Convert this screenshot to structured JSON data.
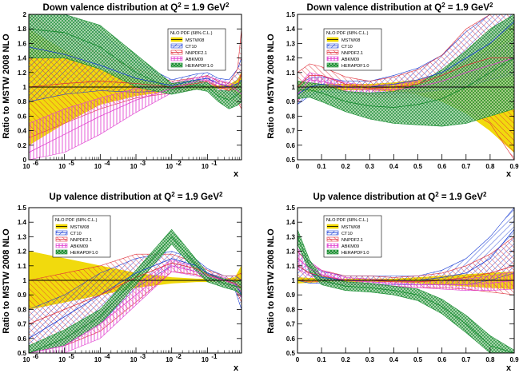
{
  "figure": {
    "legend_header": "NLO PDF (68% C.L.)",
    "legend_entries": [
      {
        "name": "MSTW08",
        "color": "#f0d800",
        "pattern": "solid"
      },
      {
        "name": "CT10",
        "color": "#1c3fd6",
        "pattern": "hatch-right"
      },
      {
        "name": "NNPDF2.1",
        "color": "#e0303a",
        "pattern": "hatch-left"
      },
      {
        "name": "ABKM09",
        "color": "#e040d0",
        "pattern": "hatch-vertical"
      },
      {
        "name": "HERAPDF1.0",
        "color": "#128a2c",
        "pattern": "crosshatch"
      }
    ]
  },
  "chart_data": [
    {
      "type": "area",
      "title_main": "Down valence distribution at Q",
      "title_sup1": "2",
      "title_mid": " = 1.9 GeV",
      "title_sup2": "2",
      "xlabel": "x",
      "ylabel": "Ratio to MSTW 2008 NLO",
      "xscale": "log",
      "xlim": [
        1e-06,
        0.9
      ],
      "ylim": [
        0,
        2
      ],
      "x_tick_labels": [
        "10",
        "10",
        "10",
        "10",
        "10",
        "10"
      ],
      "x_tick_exponents": [
        "-6",
        "-5",
        "-4",
        "-3",
        "-2",
        "-1"
      ],
      "y_tick_labels": [
        "0",
        "0.2",
        "0.4",
        "0.6",
        "0.8",
        "1",
        "1.2",
        "1.4",
        "1.6",
        "1.8",
        "2"
      ],
      "legend_position": "top-right",
      "x": [
        1e-06,
        1e-05,
        0.0001,
        0.001,
        0.01,
        0.05,
        0.1,
        0.2,
        0.4,
        0.7,
        0.9
      ],
      "series": [
        {
          "name": "MSTW08",
          "central": [
            1.0,
            1.0,
            1.0,
            1.0,
            1.0,
            1.0,
            1.0,
            1.0,
            1.0,
            1.0,
            1.0
          ],
          "lower": [
            0.2,
            0.5,
            0.76,
            0.88,
            0.95,
            0.97,
            0.97,
            0.98,
            0.97,
            0.9,
            0.8
          ],
          "upper": [
            1.8,
            1.5,
            1.24,
            1.12,
            1.05,
            1.03,
            1.03,
            1.02,
            1.03,
            1.1,
            1.2
          ]
        },
        {
          "name": "CT10",
          "central": [
            1.55,
            1.45,
            1.3,
            1.12,
            1.02,
            1.1,
            1.12,
            1.05,
            1.0,
            1.05,
            1.1
          ],
          "lower": [
            0.8,
            0.9,
            0.95,
            0.93,
            0.95,
            1.02,
            1.04,
            0.98,
            0.9,
            0.9,
            0.8
          ],
          "upper": [
            2.0,
            2.0,
            1.75,
            1.35,
            1.1,
            1.18,
            1.2,
            1.12,
            1.1,
            1.25,
            1.4
          ]
        },
        {
          "name": "NNPDF2.1",
          "central": [
            1.0,
            1.05,
            1.08,
            1.05,
            1.0,
            1.05,
            1.08,
            1.0,
            0.95,
            1.0,
            1.2
          ],
          "lower": [
            0.3,
            0.5,
            0.7,
            0.85,
            0.92,
            0.97,
            1.0,
            0.92,
            0.85,
            0.8,
            0.7
          ],
          "upper": [
            2.0,
            1.7,
            1.45,
            1.25,
            1.08,
            1.13,
            1.16,
            1.08,
            1.05,
            1.25,
            1.8
          ]
        },
        {
          "name": "ABKM09",
          "central": [
            0.1,
            0.35,
            0.6,
            0.82,
            0.98,
            1.08,
            1.1,
            1.05,
            1.02,
            0.95,
            0.9
          ],
          "lower": [
            0.0,
            0.1,
            0.35,
            0.65,
            0.92,
            1.03,
            1.06,
            1.0,
            0.98,
            0.88,
            0.8
          ],
          "upper": [
            0.5,
            0.7,
            0.85,
            0.98,
            1.05,
            1.13,
            1.15,
            1.1,
            1.06,
            1.02,
            1.0
          ]
        },
        {
          "name": "HERAPDF1.0",
          "central": [
            1.8,
            1.75,
            1.55,
            1.2,
            0.97,
            1.03,
            1.0,
            0.88,
            0.82,
            0.9,
            0.95
          ],
          "lower": [
            1.4,
            1.4,
            1.25,
            1.0,
            0.9,
            0.97,
            0.94,
            0.8,
            0.7,
            0.75,
            0.8
          ],
          "upper": [
            2.0,
            2.0,
            1.85,
            1.45,
            1.05,
            1.1,
            1.06,
            0.95,
            0.95,
            1.05,
            1.1
          ]
        }
      ]
    },
    {
      "type": "area",
      "title_main": "Down valence distribution at Q",
      "title_sup1": "2",
      "title_mid": " = 1.9 GeV",
      "title_sup2": "2",
      "xlabel": "x",
      "ylabel": "Ratio to MSTW 2008 NLO",
      "xscale": "linear",
      "xlim": [
        0,
        0.9
      ],
      "ylim": [
        0.5,
        1.5
      ],
      "x_tick_labels": [
        "0",
        "0.1",
        "0.2",
        "0.3",
        "0.4",
        "0.5",
        "0.6",
        "0.7",
        "0.8",
        "0.9"
      ],
      "y_tick_labels": [
        "0.5",
        "0.6",
        "0.7",
        "0.8",
        "0.9",
        "1",
        "1.1",
        "1.2",
        "1.3",
        "1.4",
        "1.5"
      ],
      "legend_position": "top-center",
      "x": [
        0.0,
        0.05,
        0.1,
        0.2,
        0.3,
        0.4,
        0.5,
        0.6,
        0.7,
        0.8,
        0.9
      ],
      "series": [
        {
          "name": "MSTW08",
          "central": [
            1.0,
            1.0,
            1.0,
            1.0,
            1.0,
            1.0,
            1.0,
            1.0,
            1.0,
            1.0,
            1.0
          ],
          "lower": [
            0.96,
            0.97,
            0.98,
            0.98,
            0.98,
            0.97,
            0.95,
            0.9,
            0.82,
            0.7,
            0.55
          ],
          "upper": [
            1.04,
            1.03,
            1.02,
            1.02,
            1.02,
            1.03,
            1.05,
            1.1,
            1.18,
            1.3,
            1.45
          ]
        },
        {
          "name": "CT10",
          "central": [
            0.95,
            1.0,
            1.02,
            1.0,
            1.0,
            1.02,
            1.05,
            1.1,
            1.2,
            1.3,
            1.45
          ],
          "lower": [
            0.88,
            0.94,
            0.97,
            0.96,
            0.96,
            0.96,
            0.97,
            0.98,
            1.0,
            1.05,
            1.1
          ],
          "upper": [
            1.02,
            1.06,
            1.07,
            1.04,
            1.04,
            1.08,
            1.13,
            1.22,
            1.38,
            1.5,
            1.5
          ]
        },
        {
          "name": "NNPDF2.1",
          "central": [
            1.0,
            1.08,
            1.08,
            1.02,
            0.99,
            1.0,
            1.02,
            1.08,
            1.15,
            1.2,
            1.2
          ],
          "lower": [
            0.9,
            1.0,
            1.02,
            0.97,
            0.94,
            0.93,
            0.93,
            0.93,
            0.85,
            0.75,
            0.5
          ],
          "upper": [
            1.1,
            1.16,
            1.14,
            1.07,
            1.04,
            1.07,
            1.12,
            1.22,
            1.4,
            1.5,
            1.5
          ]
        },
        {
          "name": "ABKM09",
          "central": [
            0.95,
            1.05,
            1.04,
            1.0,
            0.98,
            0.98,
            1.0,
            1.04,
            1.1,
            1.15,
            1.2
          ],
          "lower": [
            0.9,
            1.0,
            1.0,
            0.97,
            0.95,
            0.95,
            0.96,
            0.98,
            1.02,
            1.05,
            1.08
          ],
          "upper": [
            1.0,
            1.1,
            1.08,
            1.03,
            1.01,
            1.02,
            1.04,
            1.1,
            1.18,
            1.25,
            1.32
          ]
        },
        {
          "name": "HERAPDF1.0",
          "central": [
            0.98,
            0.98,
            0.96,
            0.9,
            0.87,
            0.86,
            0.88,
            0.92,
            1.0,
            1.1,
            1.2
          ],
          "lower": [
            0.92,
            0.93,
            0.9,
            0.83,
            0.78,
            0.75,
            0.74,
            0.73,
            0.75,
            0.8,
            0.85
          ],
          "upper": [
            1.04,
            1.03,
            1.02,
            0.97,
            0.96,
            0.97,
            1.02,
            1.12,
            1.25,
            1.4,
            1.5
          ]
        }
      ]
    },
    {
      "type": "area",
      "title_main": "Up valence distribution at Q",
      "title_sup1": "2",
      "title_mid": " = 1.9 GeV",
      "title_sup2": "2",
      "xlabel": "x",
      "ylabel": "Ratio to MSTW 2008 NLO",
      "xscale": "log",
      "xlim": [
        1e-06,
        0.9
      ],
      "ylim": [
        0.5,
        1.5
      ],
      "x_tick_labels": [
        "10",
        "10",
        "10",
        "10",
        "10",
        "10"
      ],
      "x_tick_exponents": [
        "-6",
        "-5",
        "-4",
        "-3",
        "-2",
        "-1"
      ],
      "y_tick_labels": [
        "0.5",
        "0.6",
        "0.7",
        "0.8",
        "0.9",
        "1",
        "1.1",
        "1.2",
        "1.3",
        "1.4",
        "1.5"
      ],
      "legend_position": "top-left",
      "x": [
        1e-06,
        1e-05,
        0.0001,
        0.001,
        0.01,
        0.05,
        0.1,
        0.3,
        0.6,
        0.9
      ],
      "series": [
        {
          "name": "MSTW08",
          "central": [
            1.0,
            1.0,
            1.0,
            1.0,
            1.0,
            1.0,
            1.0,
            1.0,
            1.0,
            1.0
          ],
          "lower": [
            0.8,
            0.85,
            0.9,
            0.95,
            0.98,
            0.99,
            0.99,
            0.99,
            0.98,
            0.9
          ],
          "upper": [
            1.2,
            1.15,
            1.1,
            1.05,
            1.02,
            1.01,
            1.01,
            1.01,
            1.02,
            1.1
          ]
        },
        {
          "name": "CT10",
          "central": [
            0.6,
            0.75,
            0.9,
            1.05,
            1.15,
            1.1,
            1.05,
            1.0,
            0.98,
            0.9
          ],
          "lower": [
            0.5,
            0.55,
            0.7,
            0.95,
            1.1,
            1.06,
            1.02,
            0.97,
            0.93,
            0.8
          ],
          "upper": [
            0.8,
            0.9,
            1.05,
            1.15,
            1.2,
            1.14,
            1.08,
            1.03,
            1.03,
            1.0
          ]
        },
        {
          "name": "NNPDF2.1",
          "central": [
            0.7,
            0.8,
            0.9,
            1.02,
            1.12,
            1.08,
            1.04,
            1.0,
            0.98,
            0.95
          ],
          "lower": [
            0.5,
            0.55,
            0.65,
            0.85,
            1.06,
            1.04,
            1.01,
            0.97,
            0.94,
            0.85
          ],
          "upper": [
            1.0,
            1.05,
            1.1,
            1.18,
            1.18,
            1.12,
            1.07,
            1.03,
            1.03,
            1.05
          ]
        },
        {
          "name": "ABKM09",
          "central": [
            0.45,
            0.55,
            0.7,
            0.9,
            1.1,
            1.06,
            1.03,
            1.0,
            0.97,
            0.92
          ],
          "lower": [
            0.4,
            0.48,
            0.6,
            0.83,
            1.06,
            1.03,
            1.01,
            0.98,
            0.95,
            0.88
          ],
          "upper": [
            0.5,
            0.6,
            0.78,
            0.97,
            1.14,
            1.09,
            1.05,
            1.02,
            0.99,
            0.96
          ]
        },
        {
          "name": "HERAPDF1.0",
          "central": [
            0.5,
            0.6,
            0.75,
            1.02,
            1.3,
            1.1,
            1.02,
            0.98,
            0.96,
            0.95
          ],
          "lower": [
            0.45,
            0.55,
            0.7,
            0.97,
            1.25,
            1.06,
            0.99,
            0.95,
            0.93,
            0.9
          ],
          "upper": [
            0.55,
            0.66,
            0.8,
            1.07,
            1.35,
            1.14,
            1.05,
            1.01,
            0.99,
            1.0
          ]
        }
      ]
    },
    {
      "type": "area",
      "title_main": "Up valence distribution at Q",
      "title_sup1": "2",
      "title_mid": " = 1.9 GeV",
      "title_sup2": "2",
      "xlabel": "x",
      "ylabel": "Ratio to MSTW 2008 NLO",
      "xscale": "linear",
      "xlim": [
        0,
        0.9
      ],
      "ylim": [
        0.5,
        1.5
      ],
      "x_tick_labels": [
        "0",
        "0.1",
        "0.2",
        "0.3",
        "0.4",
        "0.5",
        "0.6",
        "0.7",
        "0.8",
        "0.9"
      ],
      "y_tick_labels": [
        "0.5",
        "0.6",
        "0.7",
        "0.8",
        "0.9",
        "1",
        "1.1",
        "1.2",
        "1.3",
        "1.4",
        "1.5"
      ],
      "legend_position": "top-center",
      "x": [
        0.0,
        0.05,
        0.1,
        0.2,
        0.3,
        0.4,
        0.5,
        0.6,
        0.7,
        0.8,
        0.9
      ],
      "series": [
        {
          "name": "MSTW08",
          "central": [
            1.0,
            1.0,
            1.0,
            1.0,
            1.0,
            1.0,
            1.0,
            1.0,
            1.0,
            1.0,
            1.0
          ],
          "lower": [
            0.98,
            0.985,
            0.99,
            0.99,
            0.99,
            0.99,
            0.98,
            0.97,
            0.96,
            0.95,
            0.94
          ],
          "upper": [
            1.02,
            1.015,
            1.01,
            1.01,
            1.01,
            1.01,
            1.02,
            1.03,
            1.04,
            1.05,
            1.06
          ]
        },
        {
          "name": "CT10",
          "central": [
            1.1,
            1.05,
            1.02,
            1.0,
            1.0,
            1.0,
            1.0,
            1.02,
            1.05,
            1.15,
            1.35
          ],
          "lower": [
            1.0,
            0.98,
            0.98,
            0.97,
            0.97,
            0.97,
            0.97,
            0.97,
            0.97,
            1.0,
            1.05
          ],
          "upper": [
            1.2,
            1.12,
            1.06,
            1.03,
            1.03,
            1.03,
            1.03,
            1.07,
            1.15,
            1.3,
            1.5
          ]
        },
        {
          "name": "NNPDF2.1",
          "central": [
            1.1,
            1.05,
            1.03,
            1.0,
            1.0,
            0.99,
            0.99,
            1.0,
            1.02,
            1.05,
            1.1
          ],
          "lower": [
            1.0,
            0.99,
            0.99,
            0.97,
            0.97,
            0.96,
            0.95,
            0.95,
            0.94,
            0.92,
            0.9
          ],
          "upper": [
            1.2,
            1.11,
            1.07,
            1.03,
            1.03,
            1.02,
            1.03,
            1.05,
            1.1,
            1.18,
            1.3
          ]
        },
        {
          "name": "ABKM09",
          "central": [
            1.15,
            1.08,
            1.04,
            1.0,
            0.99,
            0.98,
            0.97,
            0.97,
            0.97,
            0.98,
            1.0
          ],
          "lower": [
            1.08,
            1.03,
            1.01,
            0.98,
            0.97,
            0.96,
            0.95,
            0.94,
            0.93,
            0.93,
            0.94
          ],
          "upper": [
            1.22,
            1.13,
            1.07,
            1.02,
            1.01,
            1.0,
            0.99,
            1.0,
            1.01,
            1.03,
            1.06
          ]
        },
        {
          "name": "HERAPDF1.0",
          "central": [
            1.3,
            1.1,
            1.0,
            0.96,
            0.95,
            0.93,
            0.9,
            0.82,
            0.7,
            0.55,
            0.45
          ],
          "lower": [
            1.25,
            1.06,
            0.97,
            0.93,
            0.92,
            0.9,
            0.86,
            0.77,
            0.64,
            0.5,
            0.4
          ],
          "upper": [
            1.35,
            1.14,
            1.03,
            0.99,
            0.98,
            0.96,
            0.94,
            0.87,
            0.76,
            0.62,
            0.52
          ]
        }
      ]
    }
  ]
}
